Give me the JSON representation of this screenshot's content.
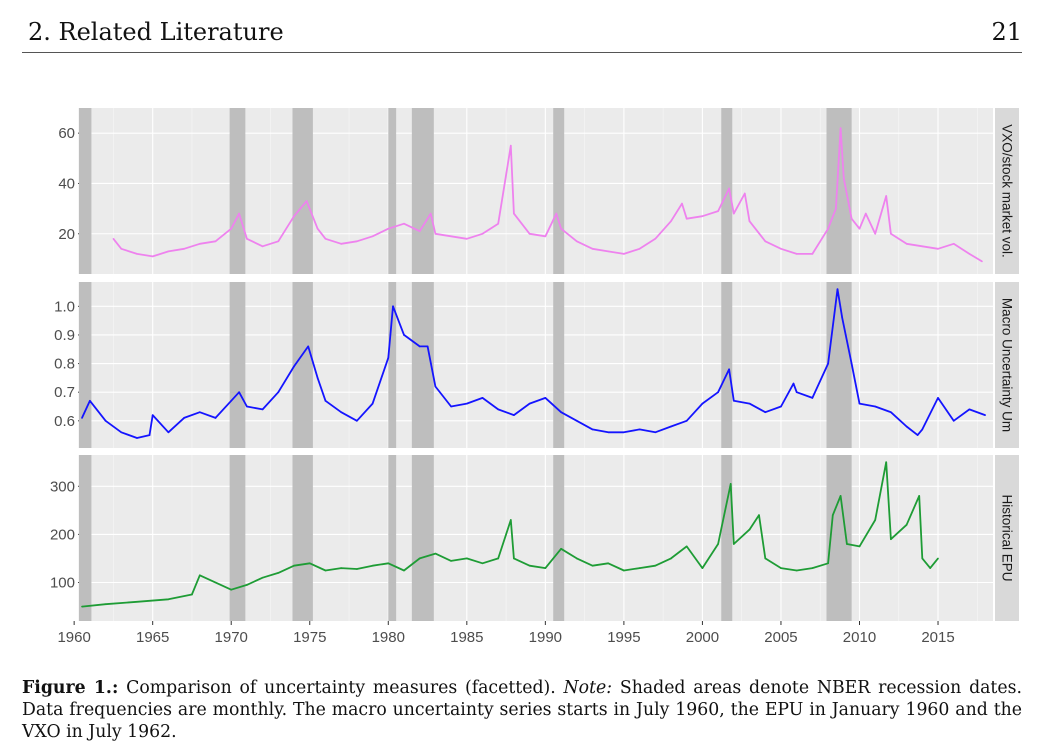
{
  "header": {
    "title": "2. Related Literature",
    "page_number": "21"
  },
  "caption": {
    "label": "Figure 1.:",
    "text": "Comparison of uncertainty measures (facetted).",
    "note_label": "Note:",
    "note_text": "Shaded areas denote NBER recession dates. Data frequencies are monthly. The macro uncertainty series starts in July 1960, the EPU in January 1960 and the VXO in July 1962."
  },
  "chart_data": {
    "type": "line",
    "xlabel": "",
    "xlim": [
      1960.5,
      2018.5
    ],
    "x_ticks": [
      1960,
      1965,
      1970,
      1975,
      1980,
      1985,
      1990,
      1995,
      2000,
      2005,
      2010,
      2015
    ],
    "grid": true,
    "recessions": [
      [
        1960.3,
        1961.1
      ],
      [
        1969.9,
        1970.9
      ],
      [
        1973.9,
        1975.2
      ],
      [
        1980.0,
        1980.5
      ],
      [
        1981.5,
        1982.9
      ],
      [
        1990.5,
        1991.2
      ],
      [
        2001.2,
        2001.9
      ],
      [
        2007.9,
        2009.5
      ]
    ],
    "panels": [
      {
        "strip_label": "VXO/stock market vol.",
        "color": "#ee82ee",
        "ylim": [
          4,
          70
        ],
        "y_ticks": [
          20,
          40,
          60
        ],
        "x": [
          1962.5,
          1963,
          1964,
          1965,
          1966,
          1967,
          1968,
          1969,
          1970,
          1970.5,
          1971,
          1972,
          1973,
          1974,
          1974.8,
          1975.5,
          1976,
          1977,
          1978,
          1979,
          1980,
          1981,
          1982,
          1982.7,
          1983,
          1984,
          1985,
          1986,
          1987,
          1987.8,
          1988,
          1989,
          1990,
          1990.7,
          1991,
          1992,
          1993,
          1994,
          1995,
          1996,
          1997,
          1998,
          1998.7,
          1999,
          2000,
          2001,
          2001.7,
          2002,
          2002.7,
          2003,
          2004,
          2005,
          2006,
          2007,
          2008,
          2008.5,
          2008.8,
          2009,
          2009.5,
          2010,
          2010.4,
          2011,
          2011.7,
          2012,
          2013,
          2014,
          2015,
          2016,
          2017,
          2017.8
        ],
        "y": [
          18,
          14,
          12,
          11,
          13,
          14,
          16,
          17,
          22,
          28,
          18,
          15,
          17,
          27,
          33,
          22,
          18,
          16,
          17,
          19,
          22,
          24,
          21,
          28,
          20,
          19,
          18,
          20,
          24,
          55,
          28,
          20,
          19,
          28,
          22,
          17,
          14,
          13,
          12,
          14,
          18,
          25,
          32,
          26,
          27,
          29,
          38,
          28,
          36,
          25,
          17,
          14,
          12,
          12,
          22,
          30,
          62,
          42,
          26,
          22,
          28,
          20,
          35,
          20,
          16,
          15,
          14,
          16,
          12,
          9
        ]
      },
      {
        "strip_label": "Macro Uncertainty Um",
        "color": "#1414ff",
        "ylim": [
          0.505,
          1.085
        ],
        "y_ticks": [
          0.6,
          0.7,
          0.8,
          0.9,
          1.0
        ],
        "x": [
          1960.5,
          1961,
          1962,
          1963,
          1964,
          1964.8,
          1965,
          1966,
          1967,
          1968,
          1969,
          1970,
          1970.5,
          1971,
          1972,
          1973,
          1974,
          1974.9,
          1975.5,
          1976,
          1977,
          1978,
          1979,
          1980,
          1980.3,
          1981,
          1982,
          1982.5,
          1983,
          1984,
          1985,
          1986,
          1987,
          1988,
          1989,
          1990,
          1991,
          1992,
          1993,
          1994,
          1995,
          1996,
          1997,
          1998,
          1999,
          2000,
          2001,
          2001.7,
          2002,
          2003,
          2004,
          2005,
          2005.8,
          2006,
          2007,
          2008,
          2008.6,
          2008.9,
          2009.5,
          2010,
          2011,
          2012,
          2013,
          2013.7,
          2014,
          2015,
          2016,
          2017,
          2018
        ],
        "y": [
          0.61,
          0.67,
          0.6,
          0.56,
          0.54,
          0.55,
          0.62,
          0.56,
          0.61,
          0.63,
          0.61,
          0.67,
          0.7,
          0.65,
          0.64,
          0.7,
          0.79,
          0.86,
          0.75,
          0.67,
          0.63,
          0.6,
          0.66,
          0.82,
          1.0,
          0.9,
          0.86,
          0.86,
          0.72,
          0.65,
          0.66,
          0.68,
          0.64,
          0.62,
          0.66,
          0.68,
          0.63,
          0.6,
          0.57,
          0.56,
          0.56,
          0.57,
          0.56,
          0.58,
          0.6,
          0.66,
          0.7,
          0.78,
          0.67,
          0.66,
          0.63,
          0.65,
          0.73,
          0.7,
          0.68,
          0.8,
          1.06,
          0.96,
          0.8,
          0.66,
          0.65,
          0.63,
          0.58,
          0.55,
          0.57,
          0.68,
          0.6,
          0.64,
          0.62
        ]
      },
      {
        "strip_label": "Historical EPU",
        "color": "#1e9c35",
        "ylim": [
          20,
          365
        ],
        "y_ticks": [
          100,
          200,
          300
        ],
        "x": [
          1960.5,
          1962,
          1964,
          1966,
          1967.5,
          1968,
          1970,
          1971,
          1972,
          1973,
          1974,
          1975,
          1976,
          1977,
          1978,
          1979,
          1980,
          1981,
          1982,
          1983,
          1984,
          1985,
          1986,
          1987,
          1987.8,
          1988,
          1989,
          1990,
          1991,
          1992,
          1993,
          1994,
          1995,
          1996,
          1997,
          1998,
          1999,
          2000,
          2001,
          2001.8,
          2002,
          2003,
          2003.6,
          2004,
          2005,
          2006,
          2007,
          2008,
          2008.3,
          2008.8,
          2009.2,
          2010,
          2011,
          2011.7,
          2012,
          2013,
          2013.8,
          2014,
          2014.5,
          2015
        ],
        "y": [
          50,
          55,
          60,
          65,
          75,
          115,
          85,
          95,
          110,
          120,
          135,
          140,
          125,
          130,
          128,
          135,
          140,
          125,
          150,
          160,
          145,
          150,
          140,
          150,
          230,
          150,
          135,
          130,
          170,
          150,
          135,
          140,
          125,
          130,
          135,
          150,
          175,
          130,
          180,
          305,
          180,
          210,
          240,
          150,
          130,
          125,
          130,
          140,
          240,
          280,
          180,
          175,
          230,
          350,
          190,
          220,
          280,
          150,
          130,
          150
        ]
      }
    ]
  }
}
